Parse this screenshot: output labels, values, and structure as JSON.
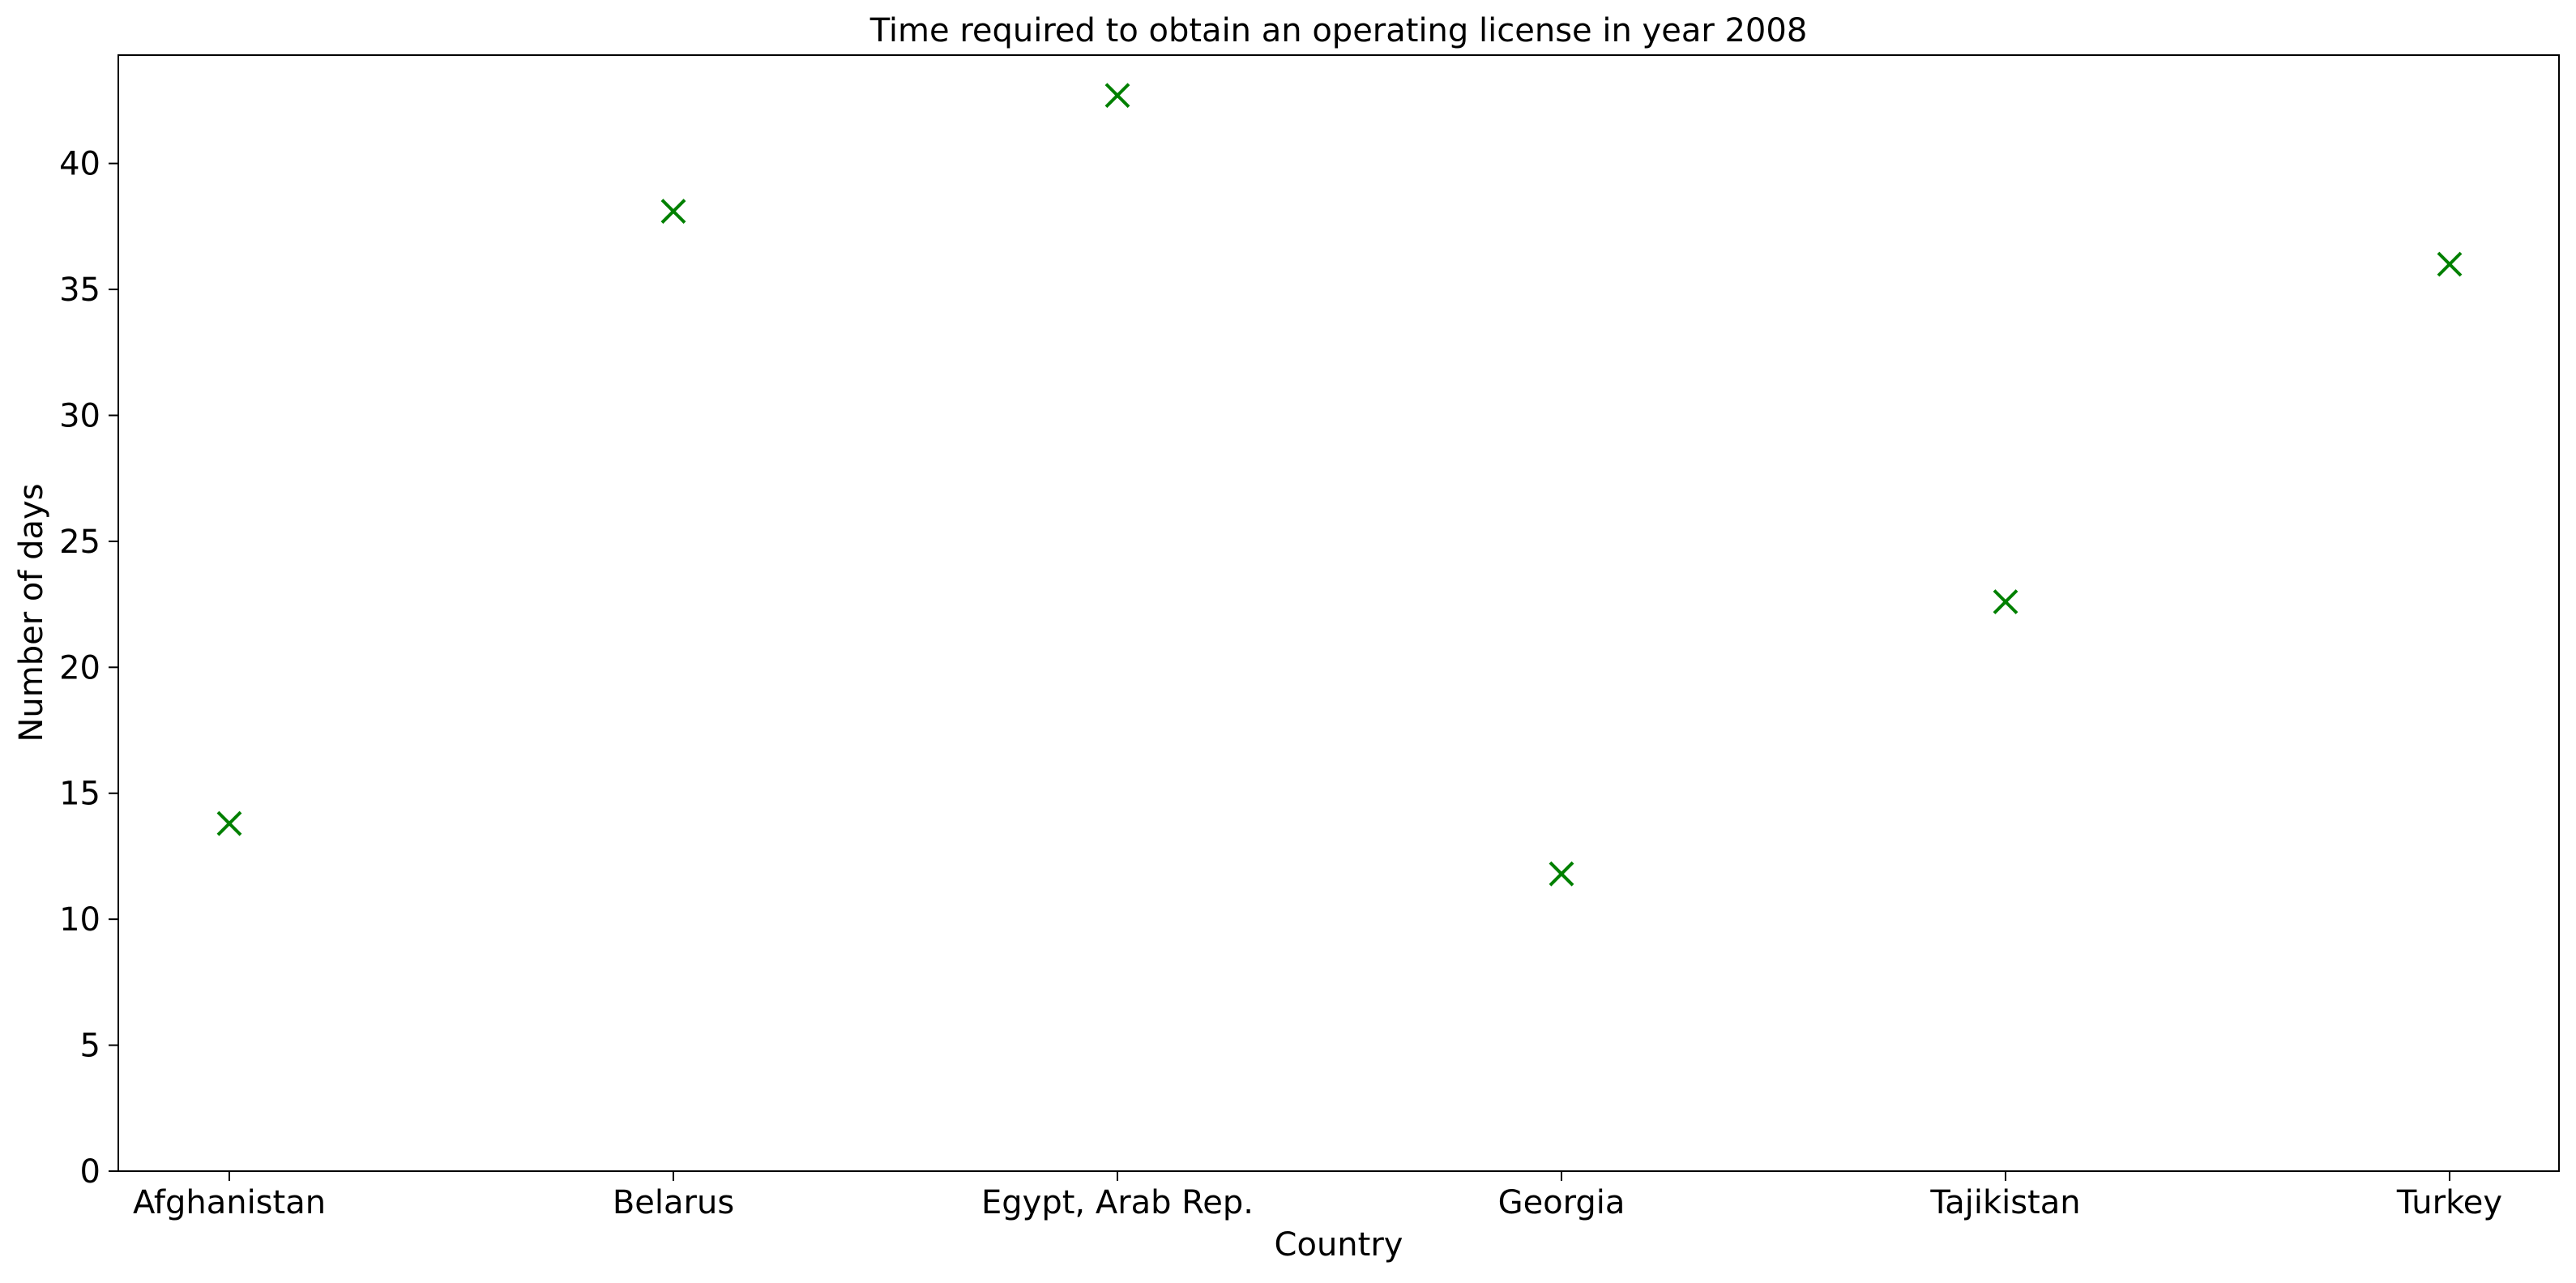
{
  "chart_data": {
    "type": "scatter",
    "title": "Time required to obtain an operating license in year 2008",
    "xlabel": "Country",
    "ylabel": "Number of days",
    "categories": [
      "Afghanistan",
      "Belarus",
      "Egypt, Arab Rep.",
      "Georgia",
      "Tajikistan",
      "Turkey"
    ],
    "series": [
      {
        "values": [
          13.8,
          38.1,
          42.7,
          11.8,
          22.6,
          36.0
        ],
        "color": "#008000",
        "marker": "x"
      }
    ],
    "ylim": [
      0,
      44.3
    ],
    "yticks": [
      0,
      5,
      10,
      15,
      20,
      25,
      30,
      35,
      40
    ],
    "grid": false,
    "legend": "none"
  }
}
